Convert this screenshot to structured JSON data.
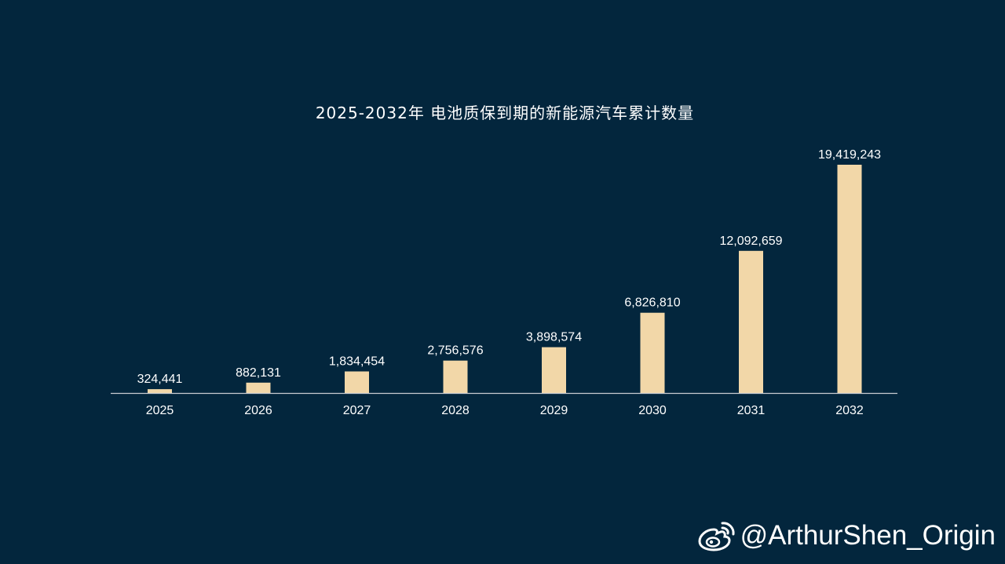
{
  "chart_data": {
    "type": "bar",
    "title": "2025-2032年 电池质保到期的新能源汽车累计数量",
    "xlabel": "",
    "ylabel": "",
    "categories": [
      "2025",
      "2026",
      "2027",
      "2028",
      "2029",
      "2030",
      "2031",
      "2032"
    ],
    "values": [
      324441,
      882131,
      1834454,
      2756576,
      3898574,
      6826810,
      12092659,
      19419243
    ],
    "value_labels": [
      "324,441",
      "882,131",
      "1,834,454",
      "2,756,576",
      "3,898,574",
      "6,826,810",
      "12,092,659",
      "19,419,243"
    ],
    "ylim": [
      0,
      19419243
    ],
    "grid": false,
    "legend": "none",
    "colors": {
      "background": "#03263d",
      "bar": "#f2d7a8",
      "axis": "#c8ccd2",
      "text": "#ffffff"
    }
  },
  "watermark": {
    "icon": "weibo-icon",
    "text": "@ArthurShen_Origin"
  }
}
